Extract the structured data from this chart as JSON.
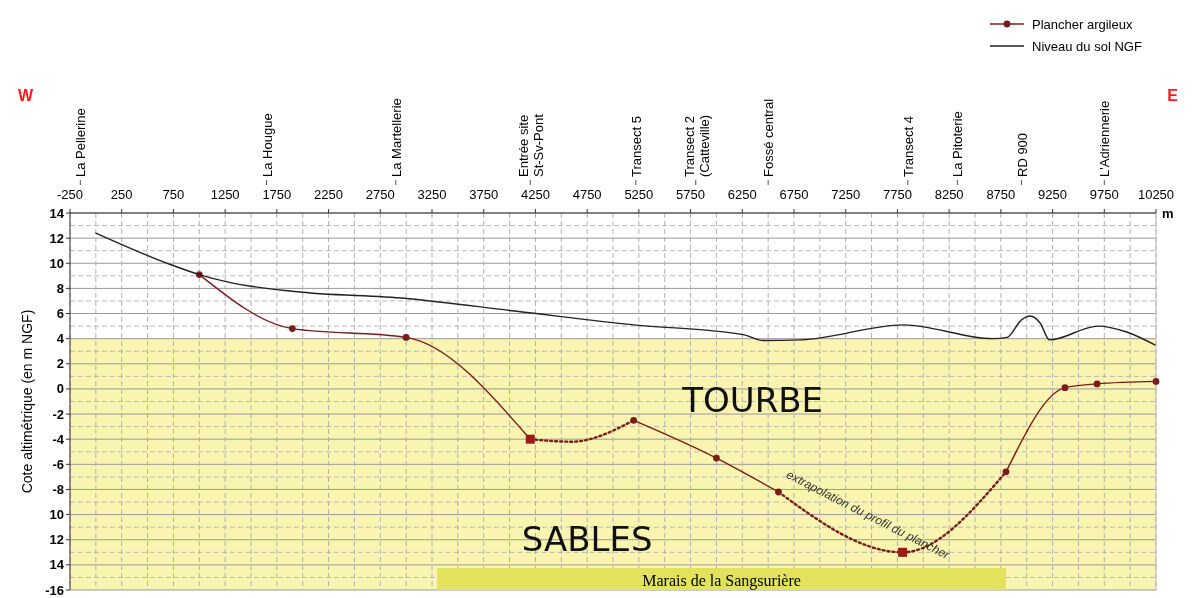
{
  "chart_data": {
    "type": "line",
    "ylabel": "Cote altimétrique (en m NGF)",
    "xlabel": "m",
    "xlim": [
      -250,
      10250
    ],
    "xticks": [
      -250,
      250,
      750,
      1250,
      1750,
      2250,
      2750,
      3250,
      3750,
      4250,
      4750,
      5250,
      5750,
      6250,
      6750,
      7250,
      7750,
      8250,
      8750,
      9250,
      9750,
      10250
    ],
    "ylim": [
      -16,
      14
    ],
    "yticks": [
      14,
      12,
      10,
      8,
      6,
      4,
      2,
      0,
      -2,
      -4,
      -6,
      -8,
      {
        "value": -10,
        "label": "10"
      },
      {
        "value": -12,
        "label": "12"
      },
      {
        "value": -14,
        "label": "14"
      },
      -16
    ],
    "grid": true,
    "legend": "top right",
    "series": [
      {
        "name": "Plancher argileux",
        "color": "#7b1c1c",
        "line_style": "solid",
        "marker": "circle",
        "x": [
          1000,
          1900,
          3000,
          4200
        ],
        "values": [
          9.1,
          4.8,
          4.1,
          -4.0
        ]
      },
      {
        "color": "#7b1c1c",
        "line_style": "dotted",
        "marker": "none",
        "x": [
          4200,
          4600,
          5200
        ],
        "values": [
          -4.0,
          -4.2,
          -2.5
        ]
      },
      {
        "color": "#7b1c1c",
        "line_style": "solid",
        "marker": "circle",
        "x": [
          5200,
          6000,
          6600
        ],
        "values": [
          -2.5,
          -5.5,
          -8.2
        ]
      },
      {
        "color": "#7b1c1c",
        "line_style": "dotted",
        "marker": "none",
        "x": [
          6600,
          7800,
          8800
        ],
        "values": [
          -8.2,
          -13.0,
          -6.6
        ]
      },
      {
        "color": "#7b1c1c",
        "line_style": "solid",
        "marker": "circle",
        "x": [
          8800,
          9370,
          9680,
          10250
        ],
        "values": [
          -6.6,
          0.1,
          0.4,
          0.6
        ]
      },
      {
        "type": "scatter",
        "color": "#a01818",
        "marker": "square",
        "x": [
          4200,
          7800
        ],
        "values": [
          -4.0,
          -13.0
        ]
      },
      {
        "name": "Niveau du sol NGF",
        "color": "#222222",
        "line_style": "solid",
        "marker": "none",
        "x": [
          0,
          720,
          1000,
          1280,
          1920,
          3000,
          4050,
          5200,
          6270,
          6450,
          6820,
          7810,
          8670,
          8810,
          8950,
          9030,
          9130,
          9220,
          9690,
          9960,
          10240
        ],
        "values": [
          12.4,
          9.9,
          9.1,
          8.5,
          7.75,
          7.2,
          6.2,
          5.1,
          4.3,
          3.85,
          3.9,
          5.1,
          4.0,
          4.1,
          5.5,
          5.8,
          5.25,
          3.9,
          5.0,
          4.55,
          3.5
        ]
      }
    ],
    "bands": [
      {
        "axis": "y",
        "from": -16,
        "to": 4,
        "color": "#f9f5b0"
      },
      {
        "axis": "x",
        "from": 3300,
        "to": 8800,
        "label": "Marais de la Sangsurière",
        "color": "#e2e25c"
      }
    ],
    "annotations": [
      "W",
      "E",
      "TOURBE",
      "SABLES",
      "extrapolation du profil du plancher"
    ],
    "ref_lines": [
      {
        "axis": "x",
        "value": -150,
        "label": "La Pellerine"
      },
      {
        "axis": "x",
        "value": 1650,
        "label": "La Hougue"
      },
      {
        "axis": "x",
        "value": 2900,
        "label": "La Martellerie"
      },
      {
        "axis": "x",
        "value": 4200,
        "label": "Entrée site\nSt-Sv-Pont"
      },
      {
        "axis": "x",
        "value": 5220,
        "label": "Transect 5"
      },
      {
        "axis": "x",
        "value": 5800,
        "label": "Transect 2\n(Catteville)"
      },
      {
        "axis": "x",
        "value": 6500,
        "label": "Fossé central"
      },
      {
        "axis": "x",
        "value": 7850,
        "label": "Transect 4"
      },
      {
        "axis": "x",
        "value": 8330,
        "label": "La Pitoterie"
      },
      {
        "axis": "x",
        "value": 8950,
        "label": "RD 900"
      },
      {
        "axis": "x",
        "value": 9750,
        "label": "L'Adriennerie"
      }
    ]
  }
}
